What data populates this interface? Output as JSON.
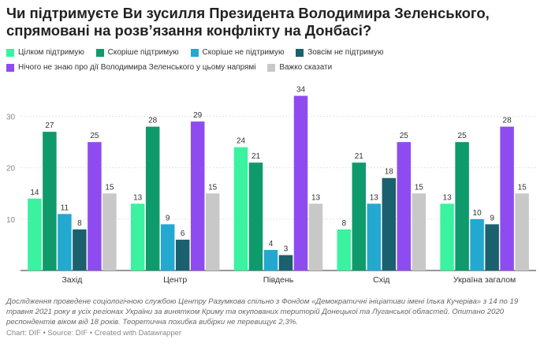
{
  "title": "Чи підтримуєте Ви зусилля Президента Володимира Зеленського, спрямовані на розв’язання конфлікту на Донбасі?",
  "colors": [
    "#3af2a0",
    "#0f9a6c",
    "#23a8cf",
    "#1b606f",
    "#8e4cf0",
    "#c8c8c8"
  ],
  "chart_data": {
    "type": "bar",
    "categories": [
      "Захід",
      "Центр",
      "Південь",
      "Схід",
      "Україна загалом"
    ],
    "series": [
      {
        "name": "Цілком підтримую",
        "values": [
          14,
          13,
          24,
          8,
          13
        ]
      },
      {
        "name": "Скоріше підтримую",
        "values": [
          27,
          28,
          21,
          21,
          25
        ]
      },
      {
        "name": "Скоріше не підтримую",
        "values": [
          11,
          9,
          4,
          13,
          10
        ]
      },
      {
        "name": "Зовсім не підтримую",
        "values": [
          8,
          6,
          3,
          18,
          9
        ]
      },
      {
        "name": "Нічого не знаю про дії Володимира Зеленського у цьому напрямі",
        "values": [
          25,
          29,
          34,
          25,
          28
        ]
      },
      {
        "name": "Важко сказати",
        "values": [
          15,
          15,
          13,
          15,
          15
        ]
      }
    ],
    "ylim": [
      0,
      35
    ],
    "yticks": [
      "10",
      "20",
      "30"
    ],
    "grid": true,
    "legend": "top"
  },
  "notes": "Дослідження проведене соціологічною службою Центру Разумкова спільно з Фондом «Демократичні ініціативи імені Ілька Кучеріва» з 14 по 19 травня 2021 року в усіх регіонах України за винятком Криму та окупованих територій Донецької та Луганської областей. Опитано 2020 респондентів віком від 18 років. Теоретична похибка вибірки не перевищує 2,3%.",
  "credit": "Chart: DIF • Source: DIF • Created with Datawrapper"
}
